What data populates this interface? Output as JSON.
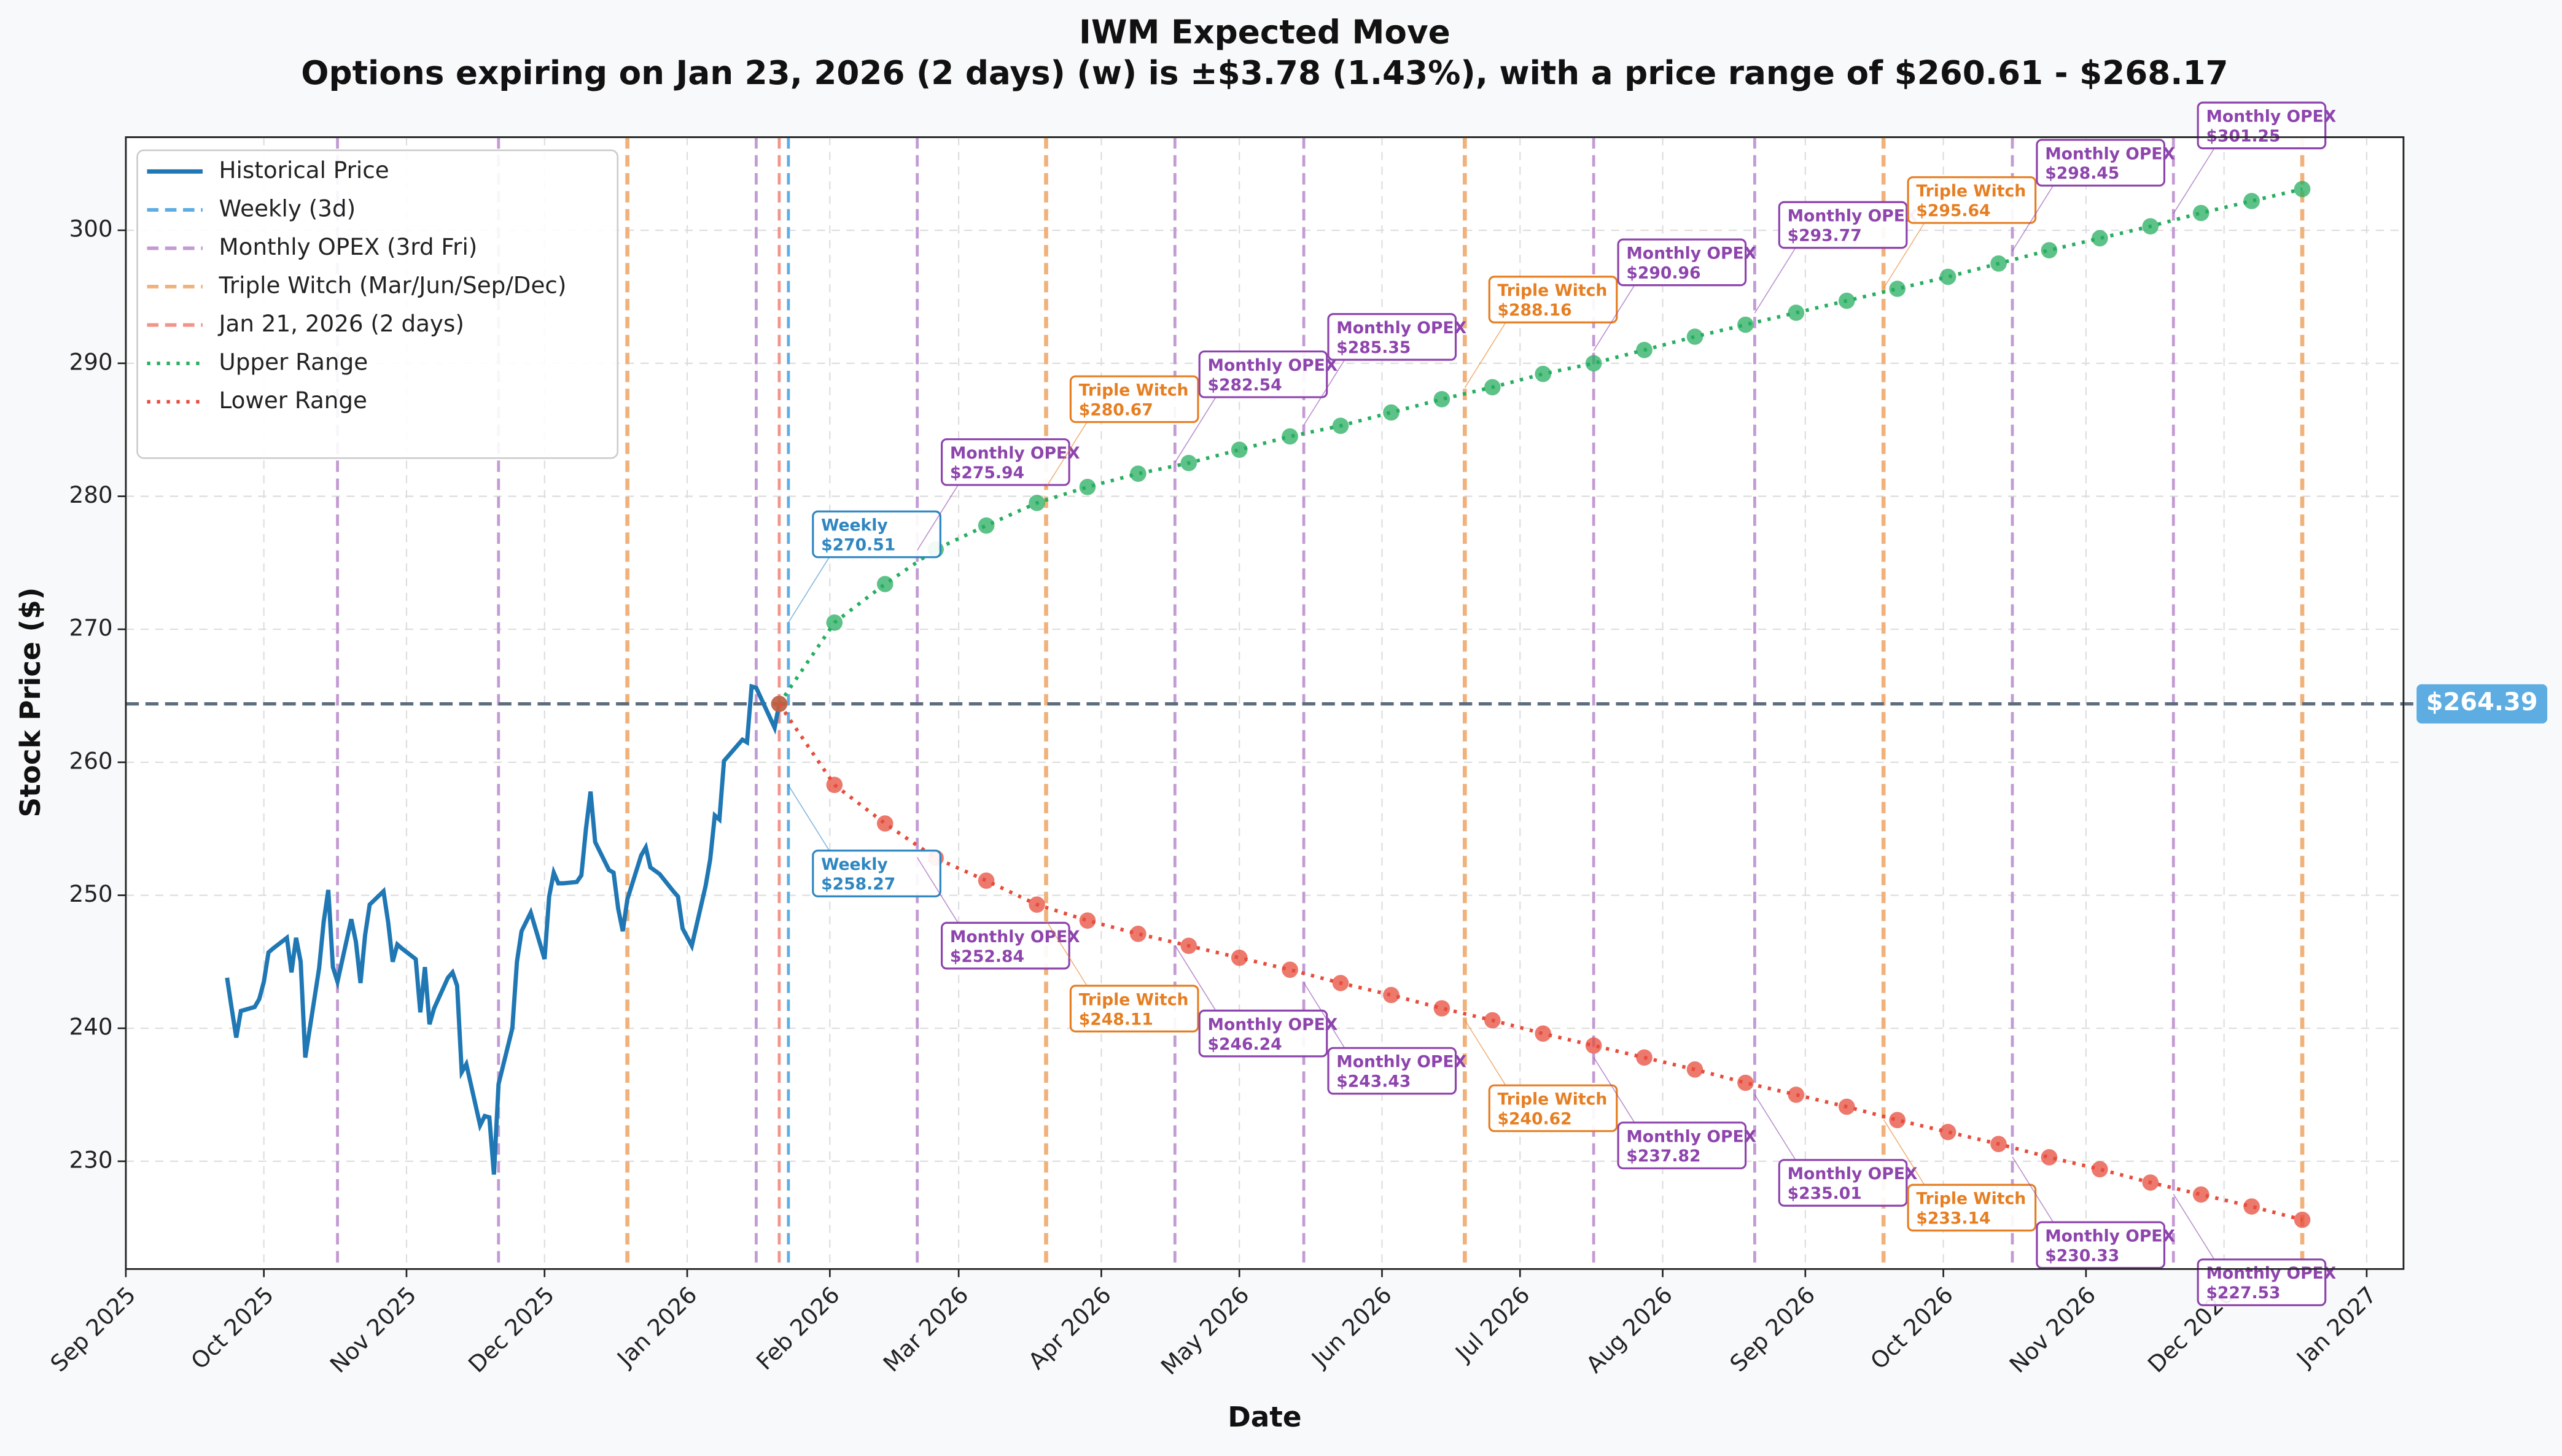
{
  "chart_data": {
    "type": "line",
    "title": "IWM Expected Move",
    "subtitle": "Options expiring on Jan 23, 2026 (2 days) (w) is ±$3.78 (1.43%), with a price range of $260.61 - $268.17",
    "x_label": "Date",
    "y_label": "Stock Price ($)",
    "xlim": [
      "2025-09-01",
      "2027-01-09"
    ],
    "ylim": [
      221.9,
      307.0
    ],
    "yticks": [
      230,
      240,
      250,
      260,
      270,
      280,
      290,
      300
    ],
    "xticks": [
      {
        "value": "2025-09-01",
        "label": "Sep 2025"
      },
      {
        "value": "2025-10-01",
        "label": "Oct 2025"
      },
      {
        "value": "2025-11-01",
        "label": "Nov 2025"
      },
      {
        "value": "2025-12-01",
        "label": "Dec 2025"
      },
      {
        "value": "2026-01-01",
        "label": "Jan 2026"
      },
      {
        "value": "2026-02-01",
        "label": "Feb 2026"
      },
      {
        "value": "2026-03-01",
        "label": "Mar 2026"
      },
      {
        "value": "2026-04-01",
        "label": "Apr 2026"
      },
      {
        "value": "2026-05-01",
        "label": "May 2026"
      },
      {
        "value": "2026-06-01",
        "label": "Jun 2026"
      },
      {
        "value": "2026-07-01",
        "label": "Jul 2026"
      },
      {
        "value": "2026-08-01",
        "label": "Aug 2026"
      },
      {
        "value": "2026-09-01",
        "label": "Sep 2026"
      },
      {
        "value": "2026-10-01",
        "label": "Oct 2026"
      },
      {
        "value": "2026-11-01",
        "label": "Nov 2026"
      },
      {
        "value": "2026-12-01",
        "label": "Dec 2026"
      },
      {
        "value": "2027-01-01",
        "label": "Jan 2027"
      }
    ],
    "grid": true,
    "legend": "upper left",
    "current_price": {
      "value": 264.39,
      "label": "$264.39",
      "color": "#5d6d7e"
    },
    "series": [
      {
        "name": "Historical Price",
        "color": "#1f77b4",
        "line_style": "solid",
        "markers": false,
        "x": [
          "2025-09-23",
          "2025-09-24",
          "2025-09-25",
          "2025-09-26",
          "2025-09-29",
          "2025-09-30",
          "2025-10-01",
          "2025-10-02",
          "2025-10-03",
          "2025-10-06",
          "2025-10-07",
          "2025-10-08",
          "2025-10-09",
          "2025-10-10",
          "2025-10-13",
          "2025-10-14",
          "2025-10-15",
          "2025-10-16",
          "2025-10-17",
          "2025-10-20",
          "2025-10-21",
          "2025-10-22",
          "2025-10-23",
          "2025-10-24",
          "2025-10-27",
          "2025-10-28",
          "2025-10-29",
          "2025-10-30",
          "2025-10-31",
          "2025-11-03",
          "2025-11-04",
          "2025-11-05",
          "2025-11-06",
          "2025-11-07",
          "2025-11-10",
          "2025-11-11",
          "2025-11-12",
          "2025-11-13",
          "2025-11-14",
          "2025-11-17",
          "2025-11-18",
          "2025-11-19",
          "2025-11-20",
          "2025-11-21",
          "2025-11-24",
          "2025-11-25",
          "2025-11-26",
          "2025-11-28",
          "2025-12-01",
          "2025-12-02",
          "2025-12-03",
          "2025-12-04",
          "2025-12-05",
          "2025-12-08",
          "2025-12-09",
          "2025-12-10",
          "2025-12-11",
          "2025-12-12",
          "2025-12-15",
          "2025-12-16",
          "2025-12-17",
          "2025-12-18",
          "2025-12-19",
          "2025-12-22",
          "2025-12-23",
          "2025-12-24",
          "2025-12-26",
          "2025-12-29",
          "2025-12-30",
          "2025-12-31",
          "2026-01-02",
          "2026-01-05",
          "2026-01-06",
          "2026-01-07",
          "2026-01-08",
          "2026-01-09",
          "2026-01-12",
          "2026-01-13",
          "2026-01-14",
          "2026-01-15",
          "2026-01-16",
          "2026-01-20",
          "2026-01-21"
        ],
        "values": [
          243.8,
          241.5,
          239.3,
          241.3,
          241.6,
          242.2,
          243.5,
          245.7,
          246.0,
          246.8,
          244.2,
          246.8,
          245.0,
          237.8,
          244.5,
          248.0,
          250.4,
          244.6,
          243.5,
          248.2,
          246.5,
          243.4,
          247.0,
          249.3,
          250.3,
          248.0,
          245.0,
          246.3,
          246.0,
          245.2,
          241.2,
          244.6,
          240.3,
          241.5,
          243.8,
          244.2,
          243.2,
          236.7,
          237.3,
          232.7,
          233.4,
          233.3,
          229.0,
          235.8,
          240.0,
          245.0,
          247.3,
          248.7,
          245.2,
          249.9,
          251.7,
          250.9,
          250.9,
          251.0,
          251.5,
          255.0,
          257.8,
          254.0,
          251.9,
          251.7,
          249.0,
          247.3,
          249.7,
          253.0,
          253.6,
          252.1,
          251.6,
          250.3,
          249.9,
          247.5,
          246.2,
          250.7,
          252.7,
          256.0,
          255.7,
          260.1,
          261.3,
          261.7,
          261.5,
          265.7,
          265.6,
          262.6,
          264.39
        ]
      },
      {
        "name": "Upper Range",
        "color": "#27ae60",
        "line_style": "dotted",
        "markers": true,
        "x": [
          "2026-01-21",
          "2026-02-02",
          "2026-02-13",
          "2026-02-24",
          "2026-03-07",
          "2026-03-18",
          "2026-03-29",
          "2026-04-09",
          "2026-04-20",
          "2026-05-01",
          "2026-05-12",
          "2026-05-23",
          "2026-06-03",
          "2026-06-14",
          "2026-06-25",
          "2026-07-06",
          "2026-07-17",
          "2026-07-28",
          "2026-08-08",
          "2026-08-19",
          "2026-08-30",
          "2026-09-10",
          "2026-09-21",
          "2026-10-02",
          "2026-10-13",
          "2026-10-24",
          "2026-11-04",
          "2026-11-15",
          "2026-11-26",
          "2026-12-07",
          "2026-12-18"
        ],
        "values": [
          264.39,
          270.5,
          273.4,
          276.0,
          277.8,
          279.5,
          280.7,
          281.7,
          282.5,
          283.5,
          284.5,
          285.3,
          286.3,
          287.3,
          288.2,
          289.2,
          290.0,
          291.0,
          292.0,
          292.9,
          293.8,
          294.7,
          295.6,
          296.5,
          297.5,
          298.5,
          299.4,
          300.3,
          301.3,
          302.2,
          303.1
        ]
      },
      {
        "name": "Lower Range",
        "color": "#e74c3c",
        "line_style": "dotted",
        "markers": true,
        "x": [
          "2026-01-21",
          "2026-02-02",
          "2026-02-13",
          "2026-02-24",
          "2026-03-07",
          "2026-03-18",
          "2026-03-29",
          "2026-04-09",
          "2026-04-20",
          "2026-05-01",
          "2026-05-12",
          "2026-05-23",
          "2026-06-03",
          "2026-06-14",
          "2026-06-25",
          "2026-07-06",
          "2026-07-17",
          "2026-07-28",
          "2026-08-08",
          "2026-08-19",
          "2026-08-30",
          "2026-09-10",
          "2026-09-21",
          "2026-10-02",
          "2026-10-13",
          "2026-10-24",
          "2026-11-04",
          "2026-11-15",
          "2026-11-26",
          "2026-12-07",
          "2026-12-18"
        ],
        "values": [
          264.39,
          258.3,
          255.4,
          252.8,
          251.1,
          249.3,
          248.1,
          247.1,
          246.2,
          245.3,
          244.4,
          243.4,
          242.5,
          241.5,
          240.6,
          239.6,
          238.7,
          237.8,
          236.9,
          235.9,
          235.0,
          234.1,
          233.1,
          232.2,
          231.3,
          230.3,
          229.4,
          228.4,
          227.5,
          226.6,
          225.6
        ]
      }
    ],
    "reference_lines": [
      {
        "name": "Weekly (3d)",
        "color": "#5dade2",
        "dates": [
          "2026-01-23"
        ]
      },
      {
        "name": "Monthly OPEX (3rd Fri)",
        "color": "#c39bd3",
        "dates": [
          "2025-10-17",
          "2025-11-21",
          "2026-01-16",
          "2026-02-20",
          "2026-04-17",
          "2026-05-15",
          "2026-07-17",
          "2026-08-21",
          "2026-10-16",
          "2026-11-20"
        ]
      },
      {
        "name": "Triple Witch (Mar/Jun/Sep/Dec)",
        "color": "#f0b27a",
        "dates": [
          "2025-12-19",
          "2026-03-20",
          "2026-06-19",
          "2026-09-18",
          "2026-12-18"
        ]
      },
      {
        "name": "Jan 21, 2026 (2 days)",
        "color": "#f1948a",
        "dates": [
          "2026-01-21"
        ]
      }
    ],
    "annotations": [
      {
        "label": "Weekly",
        "text": "$270.51",
        "value": 270.51,
        "x": "2026-01-23",
        "color": "#2e86c1"
      },
      {
        "label": "Weekly",
        "text": "$258.27",
        "value": 258.27,
        "x": "2026-01-23",
        "color": "#2e86c1"
      },
      {
        "label": "Monthly OPEX",
        "text": "$275.94",
        "value": 275.94,
        "x": "2026-02-20",
        "color": "#8e44ad"
      },
      {
        "label": "Monthly OPEX",
        "text": "$252.84",
        "value": 252.84,
        "x": "2026-02-20",
        "color": "#8e44ad"
      },
      {
        "label": "Triple Witch",
        "text": "$280.67",
        "value": 280.67,
        "x": "2026-03-20",
        "color": "#e67e22"
      },
      {
        "label": "Triple Witch",
        "text": "$248.11",
        "value": 248.11,
        "x": "2026-03-20",
        "color": "#e67e22"
      },
      {
        "label": "Monthly OPEX",
        "text": "$282.54",
        "value": 282.54,
        "x": "2026-04-17",
        "color": "#8e44ad"
      },
      {
        "label": "Monthly OPEX",
        "text": "$246.24",
        "value": 246.24,
        "x": "2026-04-17",
        "color": "#8e44ad"
      },
      {
        "label": "Monthly OPEX",
        "text": "$285.35",
        "value": 285.35,
        "x": "2026-05-15",
        "color": "#8e44ad"
      },
      {
        "label": "Monthly OPEX",
        "text": "$243.43",
        "value": 243.43,
        "x": "2026-05-15",
        "color": "#8e44ad"
      },
      {
        "label": "Triple Witch",
        "text": "$288.16",
        "value": 288.16,
        "x": "2026-06-19",
        "color": "#e67e22"
      },
      {
        "label": "Triple Witch",
        "text": "$240.62",
        "value": 240.62,
        "x": "2026-06-19",
        "color": "#e67e22"
      },
      {
        "label": "Monthly OPEX",
        "text": "$290.96",
        "value": 290.96,
        "x": "2026-07-17",
        "color": "#8e44ad"
      },
      {
        "label": "Monthly OPEX",
        "text": "$237.82",
        "value": 237.82,
        "x": "2026-07-17",
        "color": "#8e44ad"
      },
      {
        "label": "Monthly OPEX",
        "text": "$293.77",
        "value": 293.77,
        "x": "2026-08-21",
        "color": "#8e44ad"
      },
      {
        "label": "Monthly OPEX",
        "text": "$235.01",
        "value": 235.01,
        "x": "2026-08-21",
        "color": "#8e44ad"
      },
      {
        "label": "Triple Witch",
        "text": "$295.64",
        "value": 295.64,
        "x": "2026-09-18",
        "color": "#e67e22"
      },
      {
        "label": "Triple Witch",
        "text": "$233.14",
        "value": 233.14,
        "x": "2026-09-18",
        "color": "#e67e22"
      },
      {
        "label": "Monthly OPEX",
        "text": "$298.45",
        "value": 298.45,
        "x": "2026-10-16",
        "color": "#8e44ad"
      },
      {
        "label": "Monthly OPEX",
        "text": "$230.33",
        "value": 230.33,
        "x": "2026-10-16",
        "color": "#8e44ad"
      },
      {
        "label": "Monthly OPEX",
        "text": "$301.25",
        "value": 301.25,
        "x": "2026-11-20",
        "color": "#8e44ad"
      },
      {
        "label": "Monthly OPEX",
        "text": "$227.53",
        "value": 227.53,
        "x": "2026-11-20",
        "color": "#8e44ad"
      }
    ]
  }
}
